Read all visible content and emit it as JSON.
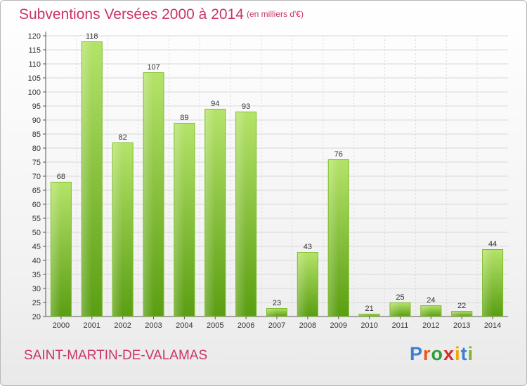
{
  "title": "Subventions Versées 2000 à 2014",
  "unit_note": "(en milliers d'€)",
  "commune": "SAINT-MARTIN-DE-VALAMAS",
  "logo": {
    "text": "Proxiti",
    "colors": [
      "#3a7fd1",
      "#e65a1a",
      "#2f9e3a",
      "#d62b2b",
      "#f0a800",
      "#3a7fd1",
      "#7bb529"
    ]
  },
  "colors": {
    "title": "#cc3366",
    "bar_light": "#b5e36a",
    "bar_dark": "#5a9e12",
    "grid": "#d9d9d9"
  },
  "chart_data": {
    "type": "bar",
    "title": "Subventions Versées 2000 à 2014",
    "subtitle": "(en milliers d'€)",
    "xlabel": "",
    "ylabel": "",
    "categories": [
      "2000",
      "2001",
      "2002",
      "2003",
      "2004",
      "2005",
      "2006",
      "2007",
      "2008",
      "2009",
      "2010",
      "2011",
      "2012",
      "2013",
      "2014"
    ],
    "values": [
      68,
      118,
      82,
      107,
      89,
      94,
      93,
      23,
      43,
      76,
      21,
      25,
      24,
      22,
      44
    ],
    "ylim": [
      20,
      120
    ],
    "yticks": [
      20,
      25,
      30,
      35,
      40,
      45,
      50,
      55,
      60,
      65,
      70,
      75,
      80,
      85,
      90,
      95,
      100,
      105,
      110,
      115,
      120
    ],
    "grid": true,
    "legend": "none"
  }
}
